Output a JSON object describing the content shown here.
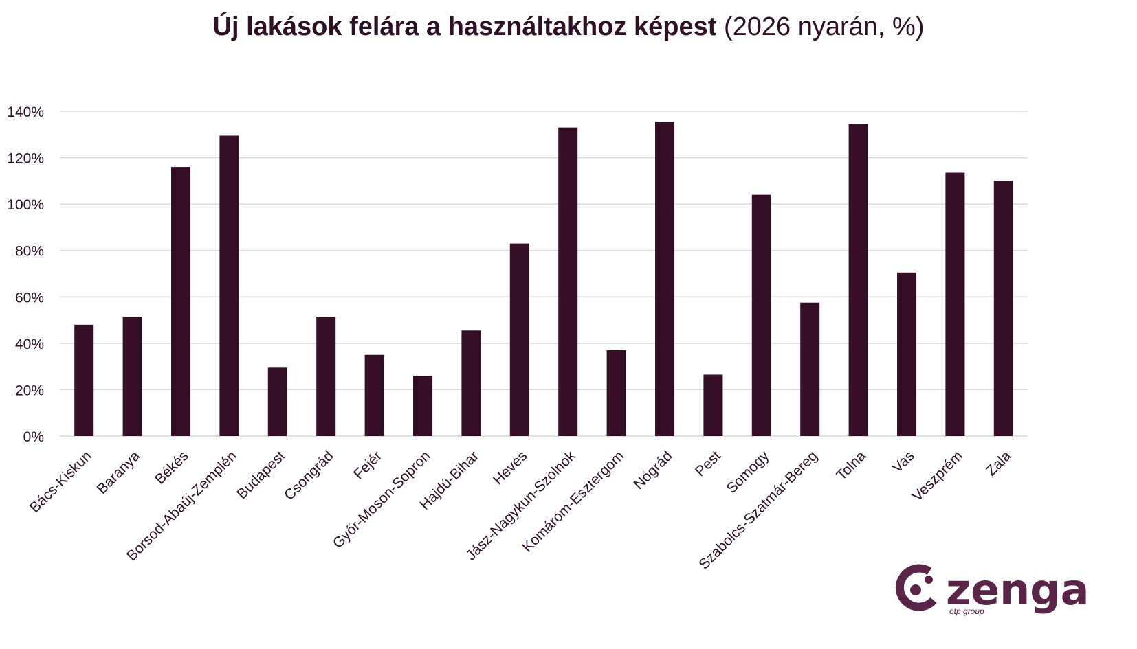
{
  "title": {
    "main": "Új lakások felára a használtakhoz képest",
    "sub": " (2026 nyarán, %)"
  },
  "colors": {
    "bar": "#360d27",
    "grid": "#d9d9d9",
    "text": "#2e0f25",
    "logo": "#5a2348"
  },
  "logo": {
    "brand": "zenga",
    "tagline": "otp group"
  },
  "chart_data": {
    "type": "bar",
    "title": "Új lakások felára a használtakhoz képest (2026 nyarán, %)",
    "xlabel": "",
    "ylabel": "",
    "ylim": [
      0,
      140
    ],
    "yticks": [
      0,
      20,
      40,
      60,
      80,
      100,
      120,
      140
    ],
    "ytick_labels": [
      "0%",
      "20%",
      "40%",
      "60%",
      "80%",
      "100%",
      "120%",
      "140%"
    ],
    "grid": true,
    "legend": "none",
    "categories": [
      "Bács-Kiskun",
      "Baranya",
      "Békés",
      "Borsod-Abaúj-Zemplén",
      "Budapest",
      "Csongrád",
      "Fejér",
      "Győr-Moson-Sopron",
      "Hajdú-Bihar",
      "Heves",
      "Jász-Nagykun-Szolnok",
      "Komárom-Esztergom",
      "Nógrád",
      "Pest",
      "Somogy",
      "Szabolcs-Szatmár-Bereg",
      "Tolna",
      "Vas",
      "Veszprém",
      "Zala"
    ],
    "values": [
      48,
      51.5,
      116,
      129.5,
      29.5,
      51.5,
      35,
      26,
      45.5,
      83,
      133,
      37,
      135.5,
      26.5,
      104,
      57.5,
      134.5,
      70.5,
      113.5,
      110
    ]
  }
}
